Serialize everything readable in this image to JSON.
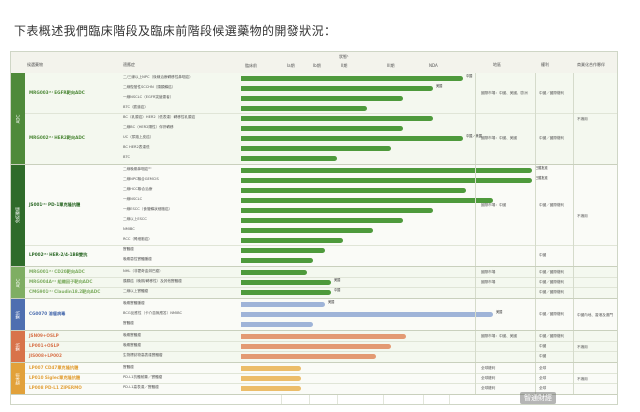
{
  "heading": "下表概述我們臨床階段及臨床前階段候選藥物的開發狀況：",
  "header": {
    "candidate": "候選藥物",
    "indication": "適應症",
    "phase_title": "狀態¹",
    "phases": [
      "臨床前",
      "Ia期",
      "Ib期",
      "II期",
      "III期",
      "NDA"
    ],
    "region": "地區",
    "rights": "權利",
    "partner": "商業化合作夥伴"
  },
  "colors": {
    "adc_band": "#4f8a3a",
    "adc_band_light": "#a8c88a",
    "bar_green": "#4e9a3c",
    "bar_light": "#cfe2be",
    "bispecific_band": "#4e6fb0",
    "bispecific_bar": "#9fb4d8",
    "orange_band": "#d8734a",
    "orange_bar": "#e39a73",
    "gold_band": "#e2a13a",
    "gold_bar": "#ecbd6a"
  },
  "groups": [
    {
      "band": "ADC",
      "color": "#4f8a3a",
      "candidates": [
        {
          "name": "MRG003⁽¹⁾ EGFR靶向ADC",
          "rows": [
            {
              "indication": "二/三線以上NPC（後線治療轉移性鼻咽癌）",
              "progress": 0.74,
              "color": "#4e9a3c",
              "label": "中國"
            },
            {
              "indication": "二線復發性SCCHN（頭頸鱗癌）",
              "progress": 0.64,
              "color": "#4e9a3c",
              "label": "美國"
            },
            {
              "indication": "一線NSCLC（EGFR突變患者）",
              "progress": 0.54,
              "color": "#4e9a3c",
              "label": ""
            },
            {
              "indication": "BTC（膽道癌）",
              "progress": 0.42,
              "color": "#4e9a3c",
              "label": ""
            }
          ],
          "region": "國際市場：中國、美國、歐洲",
          "rights": "中國／國際權利"
        },
        {
          "name": "MRG002⁽¹⁾ HER2靶向ADC",
          "rows": [
            {
              "indication": "BC（乳腺癌）HER2（低表達）轉移性乳腺癌",
              "progress": 0.64,
              "color": "#4e9a3c",
              "label": ""
            },
            {
              "indication": "二線BC（HER2陽性）伴肝轉移",
              "progress": 0.54,
              "color": "#4e9a3c",
              "label": ""
            },
            {
              "indication": "UC（尿路上皮癌）",
              "progress": 0.74,
              "color": "#4e9a3c",
              "label": "中國／美國"
            },
            {
              "indication": "BC HER2表達低",
              "progress": 0.5,
              "color": "#4e9a3c",
              "label": ""
            },
            {
              "indication": "BTC",
              "progress": 0.32,
              "color": "#4e9a3c",
              "label": ""
            }
          ],
          "region": "國際市場：中國、美國",
          "rights": "中國／國際權利"
        }
      ],
      "partner": "不適用"
    },
    {
      "band": "免疫腫瘤",
      "color": "#2f6b2a",
      "candidates": [
        {
          "name": "JS001⁽¹⁾ PD-1單克隆抗體",
          "rows": [
            {
              "indication": "二線晚期鼻咽癌⁽²⁾",
              "progress": 0.97,
              "color": "#4e9a3c",
              "label": "已獲批准"
            },
            {
              "indication": "二線NPC聯合GEMCIS",
              "progress": 0.97,
              "color": "#4e9a3c",
              "label": "已獲批准"
            },
            {
              "indication": "二線HCC聯合治療",
              "progress": 0.75,
              "color": "#4e9a3c",
              "label": ""
            },
            {
              "indication": "一線NSCLC",
              "progress": 0.84,
              "color": "#4e9a3c",
              "label": ""
            },
            {
              "indication": "一線ESCC（食管鱗狀細胞癌）",
              "progress": 0.64,
              "color": "#4e9a3c",
              "label": ""
            },
            {
              "indication": "二線以上ESCC",
              "progress": 0.54,
              "color": "#4e9a3c",
              "label": ""
            },
            {
              "indication": "NMIBC",
              "progress": 0.44,
              "color": "#4e9a3c",
              "label": ""
            },
            {
              "indication": "RCC（腎細胞癌）",
              "progress": 0.34,
              "color": "#4e9a3c",
              "label": ""
            }
          ],
          "region": "國際市場：中國",
          "rights": "中國／國際權利"
        },
        {
          "name": "LP002⁽¹⁾ HER-2/4-1BB雙抗",
          "rows": [
            {
              "indication": "實體瘤",
              "progress": 0.28,
              "color": "#4e9a3c",
              "label": ""
            },
            {
              "indication": "晚期惡性實體腫瘤",
              "progress": 0.24,
              "color": "#4e9a3c",
              "label": ""
            }
          ],
          "region": "",
          "rights": "中國"
        }
      ],
      "partner": "不適用"
    },
    {
      "band": "ADC",
      "color": "#7fae63",
      "candidates": [
        {
          "name": "MRG001⁽¹⁾ CD20靶向ADC",
          "rows": [
            {
              "indication": "NHL（非霍奇金淋巴瘤）",
              "progress": 0.22,
              "color": "#4e9a3c",
              "label": ""
            }
          ],
          "region": "國際市場",
          "rights": "中國／國際權利"
        },
        {
          "name": "MRG004A⁽¹⁾ 組織因子靶向ADC",
          "rows": [
            {
              "indication": "胰腺癌（晚期/轉移性）及其他實體瘤",
              "progress": 0.3,
              "color": "#4e9a3c",
              "label": "美國"
            }
          ],
          "region": "國際市場",
          "rights": "中國／國際權利"
        },
        {
          "name": "CMG901⁽¹⁾ Claudin18.2靶向ADC",
          "rows": [
            {
              "indication": "二線以上實體瘤",
              "progress": 0.3,
              "color": "#4e9a3c",
              "label": "中國"
            }
          ],
          "region": "",
          "rights": "中國／國際權利"
        }
      ],
      "partner": ""
    },
    {
      "band": "雙抗",
      "color": "#4e6fb0",
      "candidates": [
        {
          "name": "CG0070 溶瘤病毒",
          "rows": [
            {
              "indication": "晚期實體腫瘤",
              "progress": 0.28,
              "color": "#9fb4d8",
              "label": "美國"
            },
            {
              "indication": "BCG反應性（卡介苗無應答）NMIBC",
              "progress": 0.84,
              "color": "#9fb4d8",
              "label": "美國"
            },
            {
              "indication": "實體瘤",
              "progress": 0.24,
              "color": "#9fb4d8",
              "label": ""
            }
          ],
          "region": "",
          "rights": "中國／國際權利"
        }
      ],
      "partner": "中國內地、香港及澳門"
    },
    {
      "band": "雙抗",
      "color": "#d8734a",
      "candidates": [
        {
          "name": "JSN09+OSLP",
          "rows": [
            {
              "indication": "晚期實體瘤",
              "progress": 0.55,
              "color": "#e39a73",
              "label": ""
            }
          ],
          "region": "國際市場：中國、美國",
          "rights": "中國／國際權利"
        },
        {
          "name": "LP001+OSLP",
          "rows": [
            {
              "indication": "晚期實體瘤",
              "progress": 0.5,
              "color": "#e39a73",
              "label": ""
            }
          ],
          "region": "",
          "rights": "中國"
        },
        {
          "name": "JIS008+LP002",
          "rows": [
            {
              "indication": "生物標誌物高表達實體瘤",
              "progress": 0.45,
              "color": "#e39a73",
              "label": ""
            }
          ],
          "region": "",
          "rights": "中國"
        }
      ],
      "partner": "不適用"
    },
    {
      "band": "臨床前",
      "color": "#e2a13a",
      "candidates": [
        {
          "name": "LP007 CD47單克隆抗體",
          "rows": [
            {
              "indication": "實體瘤",
              "progress": 0.2,
              "color": "#ecbd6a",
              "label": ""
            }
          ],
          "region": "全球權利",
          "rights": "全球"
        },
        {
          "name": "LP010 Siglec單克隆抗體",
          "rows": [
            {
              "indication": "PD-L1抗體耐藥／實體瘤",
              "progress": 0.2,
              "color": "#ecbd6a",
              "label": ""
            }
          ],
          "region": "全球權利",
          "rights": "全球"
        },
        {
          "name": "LP008 PD-L1 ZIPERMO",
          "rows": [
            {
              "indication": "PD-L1高表達／實體瘤",
              "progress": 0.2,
              "color": "#ecbd6a",
              "label": ""
            }
          ],
          "region": "全球權利",
          "rights": "全球"
        }
      ],
      "partner": "不適用"
    }
  ],
  "watermark": "智通財經"
}
